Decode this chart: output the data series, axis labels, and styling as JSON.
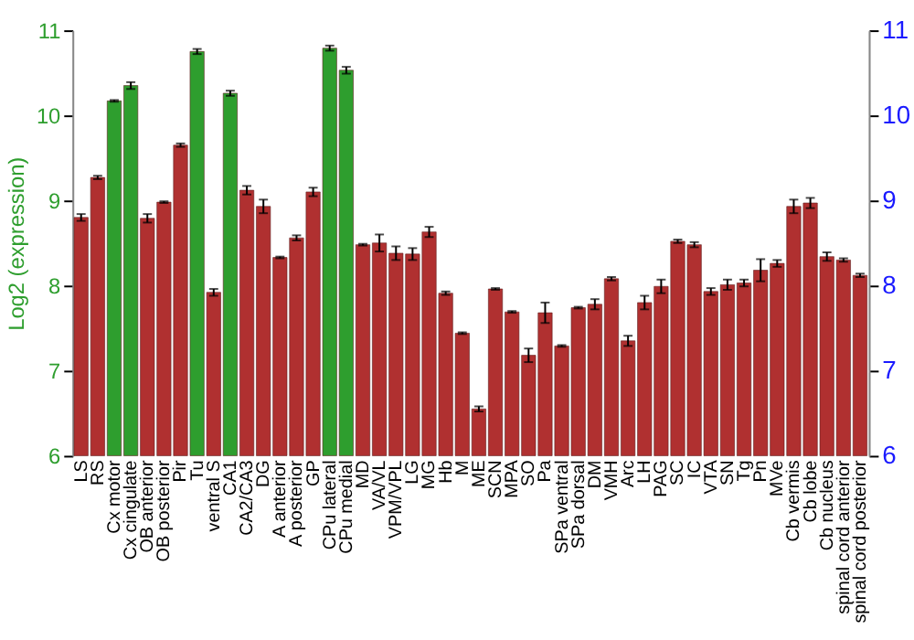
{
  "chart_data": {
    "type": "bar",
    "ylabel": "Log2 (expression)",
    "categories": [
      "LS",
      "RS",
      "Cx motor",
      "Cx cingulate",
      "OB anterior",
      "OB posterior",
      "Pir",
      "Tu",
      "ventral S",
      "CA1",
      "CA2/CA3",
      "DG",
      "A anterior",
      "A posterior",
      "GP",
      "CPu lateral",
      "CPu medial",
      "MD",
      "VA/VL",
      "VPM/VPL",
      "LG",
      "MG",
      "Hb",
      "M",
      "ME",
      "SCN",
      "MPA",
      "SO",
      "Pa",
      "SPa ventral",
      "SPa dorsal",
      "DM",
      "VMH",
      "Arc",
      "LH",
      "PAG",
      "SC",
      "IC",
      "VTA",
      "SN",
      "Tg",
      "Pn",
      "MVe",
      "Cb vermis",
      "Cb lobe",
      "Cb nucleus",
      "spinal cord anterior",
      "spinal cord posterior"
    ],
    "values": [
      8.8,
      9.27,
      10.17,
      10.35,
      8.79,
      8.98,
      9.65,
      10.75,
      7.92,
      10.26,
      9.12,
      8.93,
      8.33,
      8.56,
      9.1,
      10.79,
      10.53,
      8.48,
      8.5,
      8.38,
      8.37,
      8.63,
      7.91,
      7.44,
      6.55,
      7.96,
      7.69,
      7.18,
      7.68,
      7.29,
      7.74,
      7.78,
      8.08,
      7.35,
      7.8,
      7.99,
      8.52,
      8.48,
      7.93,
      8.01,
      8.03,
      8.18,
      8.26,
      8.93,
      8.97,
      8.34,
      8.3,
      8.12
    ],
    "errors": [
      0.04,
      0.02,
      0.01,
      0.04,
      0.05,
      0.01,
      0.02,
      0.03,
      0.04,
      0.03,
      0.05,
      0.08,
      0.01,
      0.03,
      0.05,
      0.03,
      0.04,
      0.01,
      0.1,
      0.08,
      0.07,
      0.06,
      0.02,
      0.01,
      0.03,
      0.01,
      0.01,
      0.08,
      0.12,
      0.01,
      0.01,
      0.06,
      0.02,
      0.06,
      0.08,
      0.08,
      0.02,
      0.03,
      0.04,
      0.06,
      0.04,
      0.13,
      0.04,
      0.08,
      0.06,
      0.05,
      0.02,
      0.02
    ],
    "colors": [
      "#b03030",
      "#b03030",
      "#2e9e2e",
      "#2e9e2e",
      "#b03030",
      "#b03030",
      "#b03030",
      "#2e9e2e",
      "#b03030",
      "#2e9e2e",
      "#b03030",
      "#b03030",
      "#b03030",
      "#b03030",
      "#b03030",
      "#2e9e2e",
      "#2e9e2e",
      "#b03030",
      "#b03030",
      "#b03030",
      "#b03030",
      "#b03030",
      "#b03030",
      "#b03030",
      "#b03030",
      "#b03030",
      "#b03030",
      "#b03030",
      "#b03030",
      "#b03030",
      "#b03030",
      "#b03030",
      "#b03030",
      "#b03030",
      "#b03030",
      "#b03030",
      "#b03030",
      "#b03030",
      "#b03030",
      "#b03030",
      "#b03030",
      "#b03030",
      "#b03030",
      "#b03030",
      "#b03030",
      "#b03030",
      "#b03030",
      "#b03030"
    ],
    "ylim": [
      6,
      11
    ],
    "yticks": [
      6,
      7,
      8,
      9,
      10,
      11
    ],
    "y2lim": [
      6,
      11
    ],
    "y2ticks": [
      6,
      7,
      8,
      9,
      10,
      11
    ],
    "grid": "y"
  }
}
